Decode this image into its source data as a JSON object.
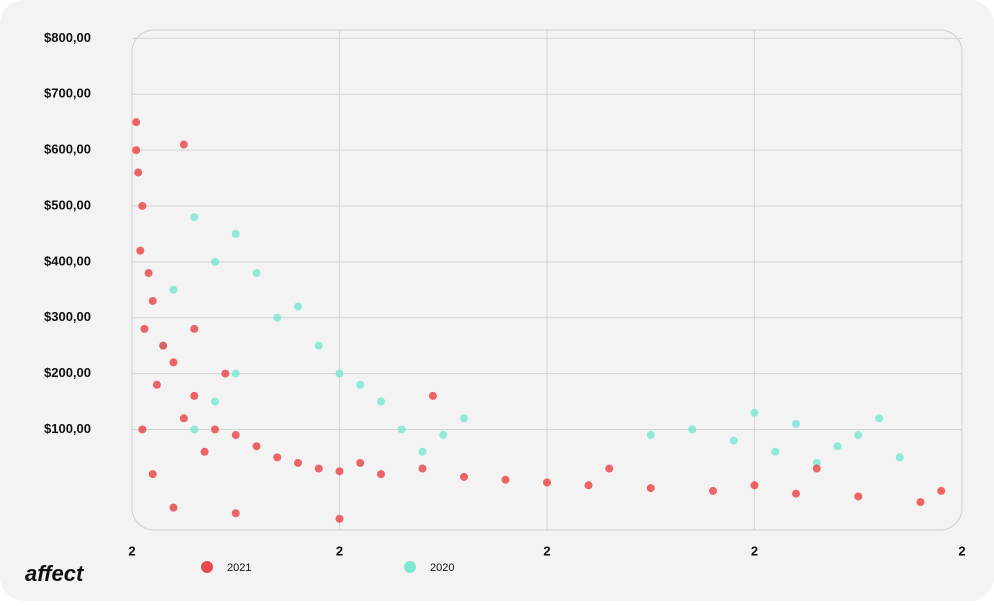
{
  "chart_data": {
    "type": "scatter",
    "brand": "affect",
    "xlim": [
      0,
      4
    ],
    "xticks": [
      {
        "value": 0,
        "label": "2"
      },
      {
        "value": 1,
        "label": "2"
      },
      {
        "value": 2,
        "label": "2"
      },
      {
        "value": 3,
        "label": "2"
      },
      {
        "value": 4,
        "label": "2"
      }
    ],
    "ylim": [
      -80,
      815
    ],
    "yticks": [
      {
        "value": 100,
        "label": "$100,00"
      },
      {
        "value": 200,
        "label": "$200,00"
      },
      {
        "value": 300,
        "label": "$300,00"
      },
      {
        "value": 400,
        "label": "$400,00"
      },
      {
        "value": 500,
        "label": "$500,00"
      },
      {
        "value": 600,
        "label": "$600,00"
      },
      {
        "value": 700,
        "label": "$700,00"
      },
      {
        "value": 800,
        "label": "$800,00"
      }
    ],
    "grid": true,
    "series": [
      {
        "name": "2021",
        "color": "#e84a4f",
        "x": [
          0.02,
          0.03,
          0.05,
          0.04,
          0.08,
          0.1,
          0.06,
          0.15,
          0.2,
          0.12,
          0.3,
          0.25,
          0.4,
          0.5,
          0.35,
          0.6,
          0.7,
          0.8,
          0.9,
          1.0,
          1.1,
          1.2,
          1.4,
          1.6,
          1.8,
          2.0,
          2.2,
          2.5,
          2.8,
          3.0,
          3.2,
          3.5,
          3.8,
          0.05,
          0.1,
          0.2,
          0.5,
          1.0,
          0.02,
          0.25,
          1.45,
          3.9,
          0.3,
          0.45,
          2.3,
          3.3
        ],
        "values": [
          650,
          560,
          500,
          420,
          380,
          330,
          280,
          250,
          220,
          180,
          160,
          120,
          100,
          90,
          60,
          70,
          50,
          40,
          30,
          25,
          40,
          20,
          30,
          15,
          10,
          5,
          0,
          -5,
          -10,
          0,
          -15,
          -20,
          -30,
          100,
          20,
          -40,
          -50,
          -60,
          600,
          610,
          160,
          -10,
          280,
          200,
          30,
          30
        ]
      },
      {
        "name": "2020",
        "color": "#7de8d0",
        "x": [
          0.3,
          0.4,
          0.5,
          0.2,
          0.6,
          0.7,
          0.8,
          0.9,
          1.0,
          1.1,
          1.2,
          0.5,
          0.4,
          0.3,
          1.3,
          1.5,
          1.6,
          1.4,
          2.5,
          2.7,
          2.9,
          3.0,
          3.1,
          3.2,
          3.4,
          3.5,
          3.6,
          3.3,
          3.7,
          0.15
        ],
        "values": [
          480,
          400,
          450,
          350,
          380,
          300,
          320,
          250,
          200,
          180,
          150,
          200,
          150,
          100,
          100,
          90,
          120,
          60,
          90,
          100,
          80,
          130,
          60,
          110,
          70,
          90,
          120,
          40,
          50,
          250
        ]
      }
    ]
  }
}
